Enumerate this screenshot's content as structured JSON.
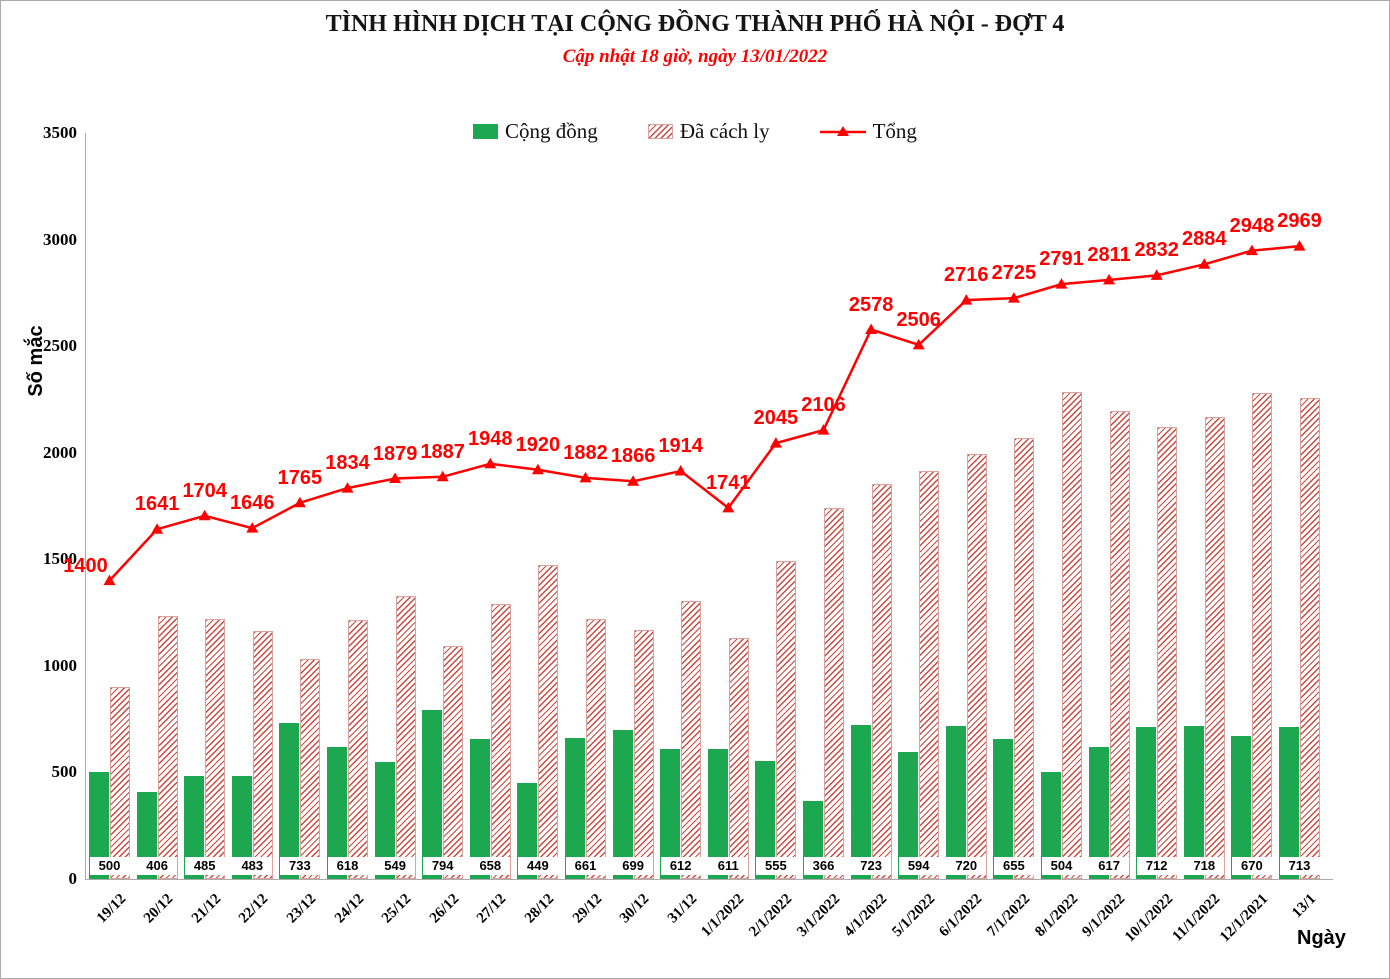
{
  "title": "TÌNH HÌNH DỊCH TẠI CỘNG ĐỒNG THÀNH PHỐ HÀ NỘI - ĐỢT 4",
  "subtitle": "Cập nhật 18 giờ, ngày 13/01/2022",
  "legend": {
    "items": [
      {
        "label": "Cộng đồng",
        "swatch": "green-solid"
      },
      {
        "label": "Đã cách ly",
        "swatch": "red-hatched"
      },
      {
        "label": "Tổng",
        "swatch": "red-line-triangle"
      }
    ]
  },
  "axis": {
    "ylabel": "Số mắc",
    "xlabel": "Ngày",
    "yticks": [
      0,
      500,
      1000,
      1500,
      2000,
      2500,
      3000,
      3500
    ]
  },
  "colors": {
    "green": "#1ca750",
    "line_red": "#ff0000",
    "hatch_stripe": "#c94840",
    "hatch_border": "#dba29d",
    "axis_gray": "#ababab"
  },
  "chart_data": {
    "type": "bar",
    "subtype": "grouped bars + line overlay",
    "title": "TÌNH HÌNH DỊCH TẠI CỘNG ĐỒNG THÀNH PHỐ HÀ NỘI - ĐỢT 4",
    "subtitle": "Cập nhật 18 giờ, ngày 13/01/2022",
    "xlabel": "Ngày",
    "ylabel": "Số mắc",
    "ylim": [
      0,
      3500
    ],
    "grid": false,
    "legend_position": "top-center",
    "categories": [
      "19/12",
      "20/12",
      "21/12",
      "22/12",
      "23/12",
      "24/12",
      "25/12",
      "26/12",
      "27/12",
      "28/12",
      "29/12",
      "30/12",
      "31/12",
      "1/1/2022",
      "2/1/2022",
      "3/1/2022",
      "4/1/2022",
      "5/1/2022",
      "6/1/2022",
      "7/1/2022",
      "8/1/2022",
      "9/1/2022",
      "10/1/2022",
      "11/1/2022",
      "12/1/2021",
      "13/1"
    ],
    "series": [
      {
        "name": "Cộng đồng",
        "type": "bar",
        "style": "solid",
        "color": "#1ca750",
        "values_labeled_on_chart": true,
        "values": [
          500,
          406,
          485,
          483,
          733,
          618,
          549,
          794,
          658,
          449,
          661,
          699,
          612,
          611,
          555,
          366,
          723,
          594,
          720,
          655,
          504,
          617,
          712,
          718,
          670,
          713
        ]
      },
      {
        "name": "Đã cách ly",
        "type": "bar",
        "style": "hatched",
        "color": "#c94840",
        "values_labeled_on_chart": false,
        "values": [
          900,
          1235,
          1219,
          1163,
          1032,
          1216,
          1330,
          1093,
          1290,
          1471,
          1221,
          1167,
          1302,
          1130,
          1490,
          1740,
          1855,
          1912,
          1996,
          2070,
          2287,
          2194,
          2120,
          2166,
          2278,
          2256
        ]
      },
      {
        "name": "Tổng",
        "type": "line",
        "marker": "triangle",
        "color": "#ff0000",
        "values_labeled_on_chart": true,
        "values": [
          1400,
          1641,
          1704,
          1646,
          1765,
          1834,
          1879,
          1887,
          1948,
          1920,
          1882,
          1866,
          1914,
          1741,
          2045,
          2106,
          2578,
          2506,
          2716,
          2725,
          2791,
          2811,
          2832,
          2884,
          2948,
          2969
        ]
      }
    ]
  }
}
